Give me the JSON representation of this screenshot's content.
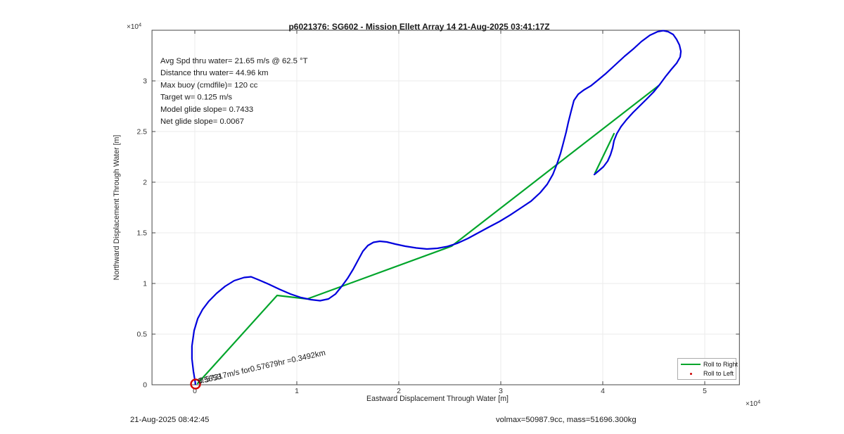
{
  "chart_data": {
    "type": "line",
    "title": "p6021376: SG602 - Mission Ellett Array 14 21-Aug-2025 03:41:17Z",
    "xlabel": "Eastward Displacement Through Water [m]",
    "ylabel": "Northward Displacement Through Water [m]",
    "axis_multiplier": {
      "text": "×10",
      "exponent": "4"
    },
    "x_ticks": [
      0,
      1,
      2,
      3,
      4,
      5
    ],
    "y_ticks": [
      0,
      0.5,
      1,
      1.5,
      2,
      2.5,
      3
    ],
    "xlim": [
      -0.42,
      5.34
    ],
    "ylim": [
      0,
      3.5
    ],
    "grid": true,
    "units_scale": "10^4 m",
    "info_lines": [
      "Avg Spd thru water= 21.65 m/s @  62.5 °T",
      "Distance thru water= 44.96 km",
      "Max buoy (cmdfile)= 120 cc",
      "Target w= 0.125 m/s",
      "Model glide slope= 0.7433",
      "Net glide slope= 0.0067"
    ],
    "annotation": {
      "text": "0.57317m/s for0.57679hr =0.3492km",
      "overlay": "0.5653",
      "angle_deg": -12.7
    },
    "legend": {
      "position": "lower right",
      "items": [
        {
          "label": "Roll to Right",
          "color": "#00A52B",
          "style": "line"
        },
        {
          "label": "Roll to Left",
          "color": "#CC0000",
          "style": "dot"
        }
      ]
    },
    "series": [
      {
        "name": "track-through-water",
        "color": "#0000DD",
        "points": [
          [
            0.007,
            0.007
          ],
          [
            -0.014,
            0.132
          ],
          [
            -0.028,
            0.257
          ],
          [
            -0.028,
            0.382
          ],
          [
            -0.007,
            0.535
          ],
          [
            0.028,
            0.653
          ],
          [
            0.076,
            0.743
          ],
          [
            0.138,
            0.826
          ],
          [
            0.214,
            0.903
          ],
          [
            0.297,
            0.972
          ],
          [
            0.386,
            1.028
          ],
          [
            0.483,
            1.059
          ],
          [
            0.552,
            1.066
          ],
          [
            0.628,
            1.035
          ],
          [
            0.724,
            0.993
          ],
          [
            0.828,
            0.944
          ],
          [
            0.938,
            0.896
          ],
          [
            1.041,
            0.861
          ],
          [
            1.138,
            0.84
          ],
          [
            1.228,
            0.83
          ],
          [
            1.31,
            0.847
          ],
          [
            1.379,
            0.896
          ],
          [
            1.441,
            0.972
          ],
          [
            1.497,
            1.049
          ],
          [
            1.552,
            1.139
          ],
          [
            1.6,
            1.229
          ],
          [
            1.648,
            1.319
          ],
          [
            1.697,
            1.375
          ],
          [
            1.752,
            1.406
          ],
          [
            1.814,
            1.417
          ],
          [
            1.883,
            1.41
          ],
          [
            1.966,
            1.389
          ],
          [
            2.062,
            1.368
          ],
          [
            2.172,
            1.351
          ],
          [
            2.276,
            1.34
          ],
          [
            2.379,
            1.347
          ],
          [
            2.476,
            1.365
          ],
          [
            2.572,
            1.396
          ],
          [
            2.676,
            1.444
          ],
          [
            2.779,
            1.5
          ],
          [
            2.883,
            1.556
          ],
          [
            2.986,
            1.611
          ],
          [
            3.09,
            1.674
          ],
          [
            3.193,
            1.743
          ],
          [
            3.297,
            1.813
          ],
          [
            3.386,
            1.896
          ],
          [
            3.455,
            1.979
          ],
          [
            3.51,
            2.076
          ],
          [
            3.552,
            2.181
          ],
          [
            3.586,
            2.285
          ],
          [
            3.614,
            2.389
          ],
          [
            3.641,
            2.493
          ],
          [
            3.662,
            2.59
          ],
          [
            3.69,
            2.701
          ],
          [
            3.717,
            2.806
          ],
          [
            3.759,
            2.868
          ],
          [
            3.814,
            2.91
          ],
          [
            3.883,
            2.951
          ],
          [
            3.952,
            3.007
          ],
          [
            4.034,
            3.076
          ],
          [
            4.124,
            3.16
          ],
          [
            4.214,
            3.243
          ],
          [
            4.297,
            3.313
          ],
          [
            4.379,
            3.389
          ],
          [
            4.462,
            3.451
          ],
          [
            4.538,
            3.486
          ],
          [
            4.593,
            3.496
          ],
          [
            4.641,
            3.486
          ],
          [
            4.69,
            3.458
          ],
          [
            4.724,
            3.41
          ],
          [
            4.752,
            3.354
          ],
          [
            4.766,
            3.292
          ],
          [
            4.759,
            3.236
          ],
          [
            4.724,
            3.174
          ],
          [
            4.676,
            3.118
          ],
          [
            4.621,
            3.049
          ],
          [
            4.559,
            2.965
          ],
          [
            4.497,
            2.889
          ],
          [
            4.428,
            2.819
          ],
          [
            4.359,
            2.75
          ],
          [
            4.297,
            2.688
          ],
          [
            4.234,
            2.618
          ],
          [
            4.179,
            2.549
          ],
          [
            4.138,
            2.479
          ],
          [
            4.11,
            2.41
          ],
          [
            4.097,
            2.34
          ],
          [
            4.076,
            2.271
          ],
          [
            4.048,
            2.208
          ],
          [
            4.007,
            2.153
          ],
          [
            3.959,
            2.111
          ],
          [
            3.917,
            2.076
          ]
        ]
      },
      {
        "name": "glide-slope-main",
        "color": "#00A52B",
        "points": [
          [
            0.028,
            0.014
          ],
          [
            0.807,
            0.882
          ],
          [
            1.103,
            0.847
          ],
          [
            2.517,
            1.368
          ],
          [
            4.545,
            2.951
          ]
        ]
      },
      {
        "name": "glide-slope-last",
        "color": "#00A52B",
        "points": [
          [
            3.924,
            2.09
          ],
          [
            4.11,
            2.479
          ]
        ]
      }
    ],
    "start_marker": {
      "x": 0.007,
      "y": 0.007,
      "color": "#D40000"
    }
  },
  "footer": {
    "timestamp": "21-Aug-2025 08:42:45",
    "stats": "volmax=50987.9cc, mass=51696.300kg"
  }
}
